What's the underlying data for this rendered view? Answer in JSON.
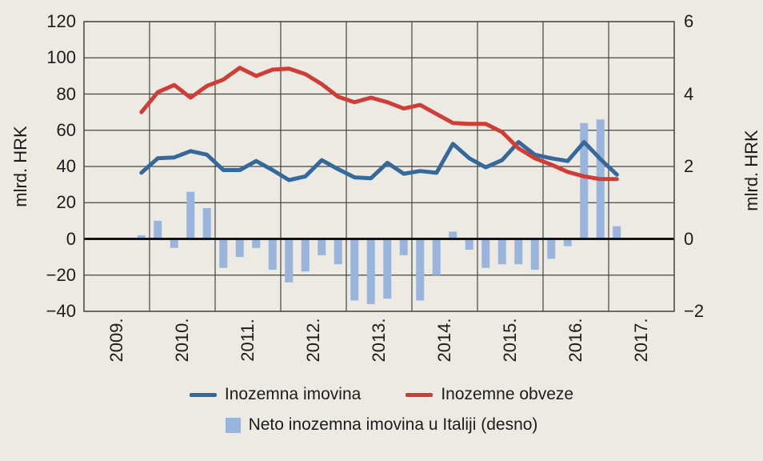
{
  "chart_data": {
    "type": "line",
    "note": "combo chart: two line series on left axis, one bar series on right axis",
    "x_quarters": [
      "2009-Q4",
      "2010-Q1",
      "2010-Q2",
      "2010-Q3",
      "2010-Q4",
      "2011-Q1",
      "2011-Q2",
      "2011-Q3",
      "2011-Q4",
      "2012-Q1",
      "2012-Q2",
      "2012-Q3",
      "2012-Q4",
      "2013-Q1",
      "2013-Q2",
      "2013-Q3",
      "2013-Q4",
      "2014-Q1",
      "2014-Q2",
      "2014-Q3",
      "2014-Q4",
      "2015-Q1",
      "2015-Q2",
      "2015-Q3",
      "2015-Q4",
      "2016-Q1",
      "2016-Q2",
      "2016-Q3",
      "2016-Q4",
      "2017-Q1"
    ],
    "series": [
      {
        "name": "Inozemna imovina",
        "kind": "line",
        "axis": "left",
        "color": "#35699B",
        "values": [
          36.5,
          44.5,
          45,
          48.5,
          46.5,
          38,
          38,
          43,
          38,
          32.5,
          34.5,
          43.5,
          38.5,
          34,
          33.5,
          42,
          36,
          37.5,
          36.5,
          52.5,
          44.5,
          39.5,
          43.5,
          53.5,
          46.5,
          44.5,
          43,
          53.5,
          44,
          35.5
        ]
      },
      {
        "name": "Inozemne obveze",
        "kind": "line",
        "axis": "left",
        "color": "#CE3D36",
        "values": [
          70,
          81,
          85,
          78,
          84.5,
          88,
          94.5,
          90,
          93.5,
          94,
          91,
          85.5,
          78.5,
          75.5,
          78,
          75.5,
          72,
          74,
          69,
          64,
          63.5,
          63.5,
          59,
          50,
          44.5,
          41,
          37,
          34.5,
          33,
          33
        ]
      },
      {
        "name": "Neto inozemna imovina u Italiji (desno)",
        "kind": "bar",
        "axis": "right",
        "color": "#9AB5DC",
        "values": [
          0.1,
          0.5,
          -0.25,
          1.3,
          0.85,
          -0.8,
          -0.5,
          -0.25,
          -0.85,
          -1.2,
          -0.9,
          -0.45,
          -0.7,
          -1.7,
          -1.8,
          -1.65,
          -0.45,
          -1.7,
          -1.0,
          0.2,
          -0.3,
          -0.8,
          -0.7,
          -0.7,
          -0.85,
          -0.55,
          -0.2,
          3.2,
          3.3,
          0.35
        ]
      }
    ],
    "left_axis": {
      "label": "mlrd. HRK",
      "min": -40,
      "max": 120,
      "ticks": [
        120,
        100,
        80,
        60,
        40,
        20,
        0,
        -20,
        -40
      ],
      "tick_labels": [
        "120",
        "100",
        "80",
        "60",
        "40",
        "20",
        "0",
        "−20",
        "−40"
      ]
    },
    "right_axis": {
      "label": "mlrd. HRK",
      "min": -2,
      "max": 6,
      "ticks": [
        6,
        4,
        2,
        0,
        -2
      ],
      "tick_labels": [
        "6",
        "4",
        "2",
        "0",
        "−2"
      ]
    },
    "x_axis": {
      "tick_labels": [
        "2009.",
        "2010.",
        "2011.",
        "2012.",
        "2013.",
        "2014.",
        "2015.",
        "2016.",
        "2017."
      ]
    },
    "grid": true,
    "legend_position": "bottom",
    "colors": {
      "background": "#EDEAE4",
      "grid": "#454540",
      "zero_line": "#141414",
      "text": "#1C1C1C"
    }
  }
}
